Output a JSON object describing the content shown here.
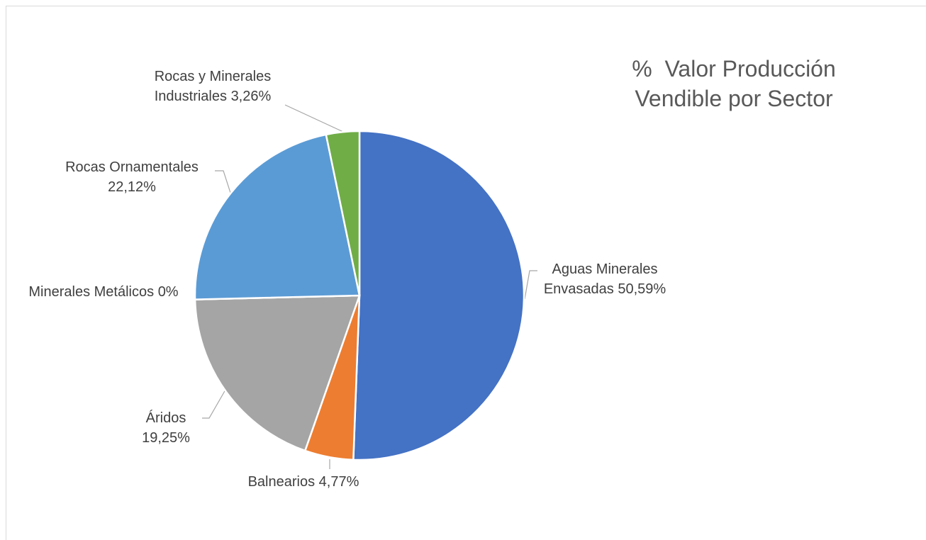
{
  "chart_data": {
    "type": "pie",
    "title": "%  Valor Producción Vendible por Sector",
    "categories": [
      "Aguas Minerales Envasadas",
      "Balnearios",
      "Áridos",
      "Minerales Metálicos",
      "Rocas Ornamentales",
      "Rocas y Minerales Industriales"
    ],
    "values": [
      50.59,
      4.77,
      19.25,
      0,
      22.12,
      3.26
    ],
    "value_labels": [
      "50,59%",
      "4,77%",
      "19,25%",
      "0%",
      "22,12%",
      "3,26%"
    ],
    "colors": [
      "#4472c4",
      "#ed7d31",
      "#a5a5a5",
      "#ffc000",
      "#5b9bd5",
      "#70ad47"
    ]
  }
}
